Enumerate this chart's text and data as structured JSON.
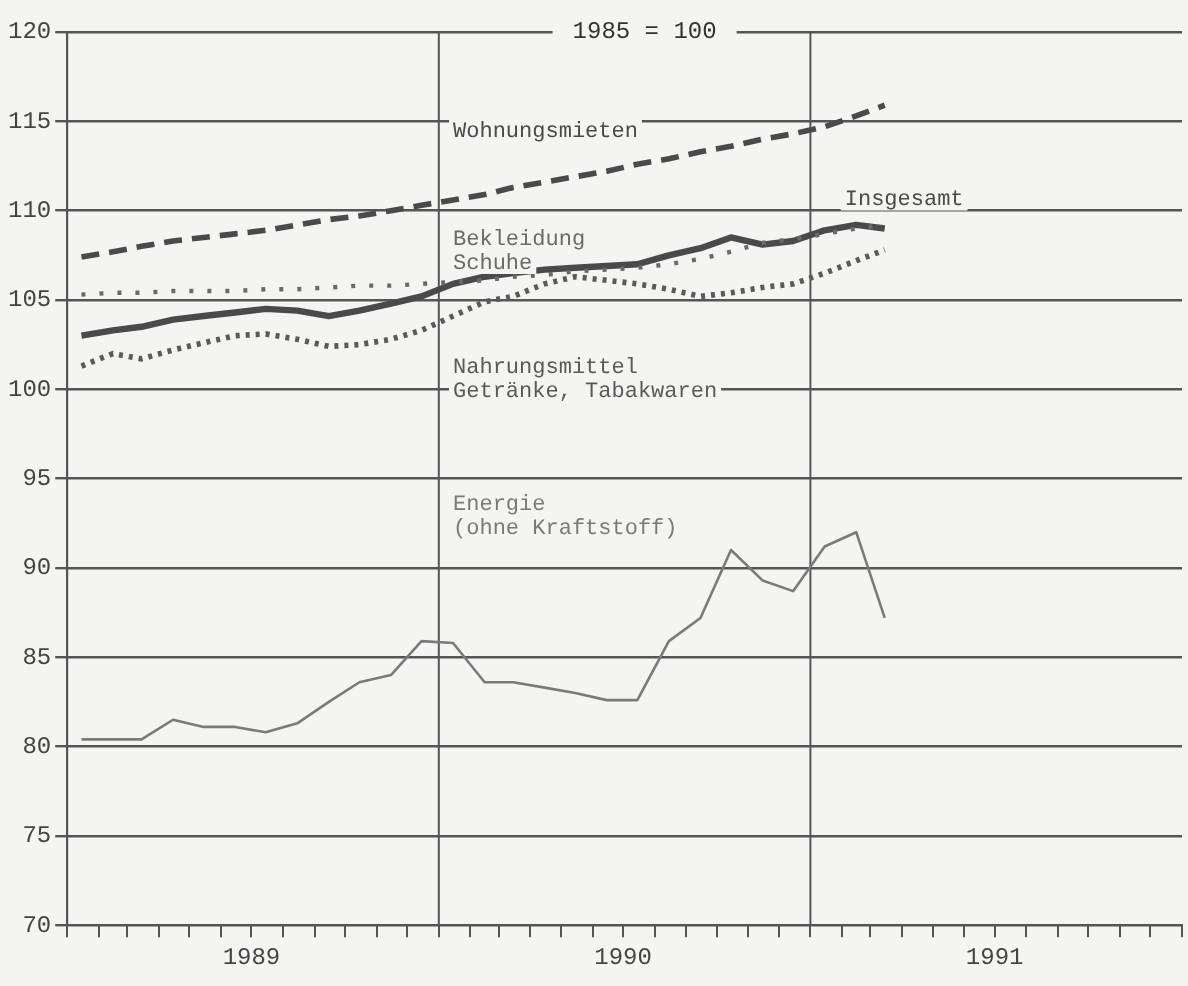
{
  "chart_data": {
    "type": "line",
    "title": "1985 = 100",
    "x": [
      "1989-01-15",
      "1989-02-15",
      "1989-03-15",
      "1989-04-15",
      "1989-05-15",
      "1989-06-15",
      "1989-07-15",
      "1989-08-15",
      "1989-09-15",
      "1989-10-15",
      "1989-11-15",
      "1989-12-15",
      "1990-01-15",
      "1990-02-15",
      "1990-03-15",
      "1990-04-15",
      "1990-05-15",
      "1990-06-15",
      "1990-07-15",
      "1990-08-15",
      "1990-09-15",
      "1990-10-15",
      "1990-11-15",
      "1990-12-15",
      "1991-01-15",
      "1991-02-15",
      "1991-03-15"
    ],
    "series": [
      {
        "name": "Wohnungsmieten",
        "color": "#4a4a4a",
        "line_style": "dashed",
        "values": [
          107.4,
          107.7,
          108.0,
          108.3,
          108.5,
          108.7,
          108.9,
          109.2,
          109.5,
          109.7,
          110.0,
          110.3,
          110.6,
          110.9,
          111.3,
          111.6,
          111.9,
          112.2,
          112.6,
          112.9,
          113.3,
          113.6,
          114.0,
          114.3,
          114.7,
          115.3,
          115.9
        ]
      },
      {
        "name": "Bekleidung\nSchuhe",
        "color": "#6a6a6a",
        "line_style": "dotted",
        "values": [
          105.3,
          105.4,
          105.4,
          105.5,
          105.5,
          105.5,
          105.6,
          105.6,
          105.7,
          105.8,
          105.8,
          105.9,
          106.0,
          106.1,
          106.3,
          106.4,
          106.6,
          106.7,
          106.8,
          107.0,
          107.3,
          107.7,
          108.2,
          108.4,
          108.7,
          109.0,
          109.2
        ]
      },
      {
        "name": "Insgesamt",
        "color": "#4a4a4a",
        "line_style": "solid",
        "values": [
          103.0,
          103.3,
          103.5,
          103.9,
          104.1,
          104.3,
          104.5,
          104.4,
          104.1,
          104.4,
          104.8,
          105.2,
          105.9,
          106.3,
          106.5,
          106.7,
          106.8,
          106.9,
          107.0,
          107.5,
          107.9,
          108.5,
          108.1,
          108.3,
          108.9,
          109.2,
          109.0
        ]
      },
      {
        "name": "Nahrungsmittel\nGetränke, Tabakwaren",
        "color": "#5a5a5a",
        "line_style": "dotted",
        "values": [
          101.3,
          102.0,
          101.7,
          102.2,
          102.6,
          103.0,
          103.1,
          102.8,
          102.4,
          102.5,
          102.8,
          103.3,
          104.1,
          104.9,
          105.2,
          105.9,
          106.3,
          106.1,
          105.9,
          105.6,
          105.2,
          105.4,
          105.7,
          105.9,
          106.5,
          107.2,
          107.8
        ]
      },
      {
        "name": "Energie\n(ohne Kraftstoff)",
        "color": "#7a7a7a",
        "line_style": "solid",
        "values": [
          80.4,
          80.4,
          80.4,
          81.5,
          81.1,
          81.1,
          80.8,
          81.3,
          82.5,
          83.6,
          84.0,
          85.9,
          85.8,
          83.6,
          83.6,
          83.3,
          83.0,
          82.6,
          82.6,
          85.9,
          87.2,
          91.0,
          89.3,
          88.7,
          91.2,
          92.0,
          87.2
        ]
      }
    ],
    "xlim": [
      "1989-01-01",
      "1992-01-01"
    ],
    "xticks": [
      {
        "value": "1989-01-01",
        "label": null
      },
      {
        "value": "1989-02-01",
        "label": null
      },
      {
        "value": "1989-03-01",
        "label": null
      },
      {
        "value": "1989-04-01",
        "label": null
      },
      {
        "value": "1989-05-01",
        "label": null
      },
      {
        "value": "1989-06-01",
        "label": null
      },
      {
        "value": "1989-07-01",
        "label": "1989"
      },
      {
        "value": "1989-08-01",
        "label": null
      },
      {
        "value": "1989-09-01",
        "label": null
      },
      {
        "value": "1989-10-01",
        "label": null
      },
      {
        "value": "1989-11-01",
        "label": null
      },
      {
        "value": "1989-12-01",
        "label": null
      },
      {
        "value": "1990-01-01",
        "label": null
      },
      {
        "value": "1990-02-01",
        "label": null
      },
      {
        "value": "1990-03-01",
        "label": null
      },
      {
        "value": "1990-04-01",
        "label": null
      },
      {
        "value": "1990-05-01",
        "label": null
      },
      {
        "value": "1990-06-01",
        "label": null
      },
      {
        "value": "1990-07-01",
        "label": "1990"
      },
      {
        "value": "1990-08-01",
        "label": null
      },
      {
        "value": "1990-09-01",
        "label": null
      },
      {
        "value": "1990-10-01",
        "label": null
      },
      {
        "value": "1990-11-01",
        "label": null
      },
      {
        "value": "1990-12-01",
        "label": null
      },
      {
        "value": "1991-01-01",
        "label": null
      },
      {
        "value": "1991-02-01",
        "label": null
      },
      {
        "value": "1991-03-01",
        "label": null
      },
      {
        "value": "1991-04-01",
        "label": null
      },
      {
        "value": "1991-05-01",
        "label": null
      },
      {
        "value": "1991-06-01",
        "label": null
      },
      {
        "value": "1991-07-01",
        "label": "1991"
      },
      {
        "value": "1991-08-01",
        "label": null
      },
      {
        "value": "1991-09-01",
        "label": null
      },
      {
        "value": "1991-10-01",
        "label": null
      },
      {
        "value": "1991-11-01",
        "label": null
      },
      {
        "value": "1991-12-01",
        "label": null
      },
      {
        "value": "1992-01-01",
        "label": null
      }
    ],
    "ylim": [
      70,
      120
    ],
    "yticks": [
      70,
      75,
      80,
      85,
      90,
      95,
      100,
      105,
      110,
      115,
      120
    ],
    "grid": "y",
    "legend": false,
    "marker": "none",
    "ref_lines": [
      {
        "axis": "x",
        "value": "1990-01-01",
        "color": "#555555"
      },
      {
        "axis": "x",
        "value": "1991-01-01",
        "color": "#555555"
      }
    ]
  }
}
